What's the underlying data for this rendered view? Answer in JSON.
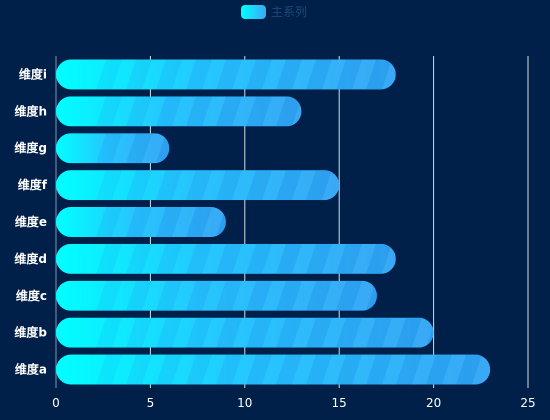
{
  "chart_data": {
    "type": "bar",
    "orientation": "horizontal",
    "categories": [
      "维度a",
      "维度b",
      "维度c",
      "维度d",
      "维度e",
      "维度f",
      "维度g",
      "维度h",
      "维度i"
    ],
    "series": [
      {
        "name": "主系列",
        "values": [
          23,
          20,
          17,
          18,
          9,
          15,
          6,
          13,
          18
        ]
      }
    ],
    "xlim": [
      0,
      25
    ],
    "xticks": [
      0,
      5,
      10,
      15,
      20,
      25
    ],
    "grid": true,
    "legend_position": "top-center",
    "colors": {
      "background": "#002049",
      "bar_start": "#00ffff",
      "bar_mid": "#26c6ff",
      "bar_end": "#3aa8f5",
      "stripe": "#1a8fe6",
      "grid": "#ffffff",
      "legend_text": "#1a4a7a"
    }
  }
}
